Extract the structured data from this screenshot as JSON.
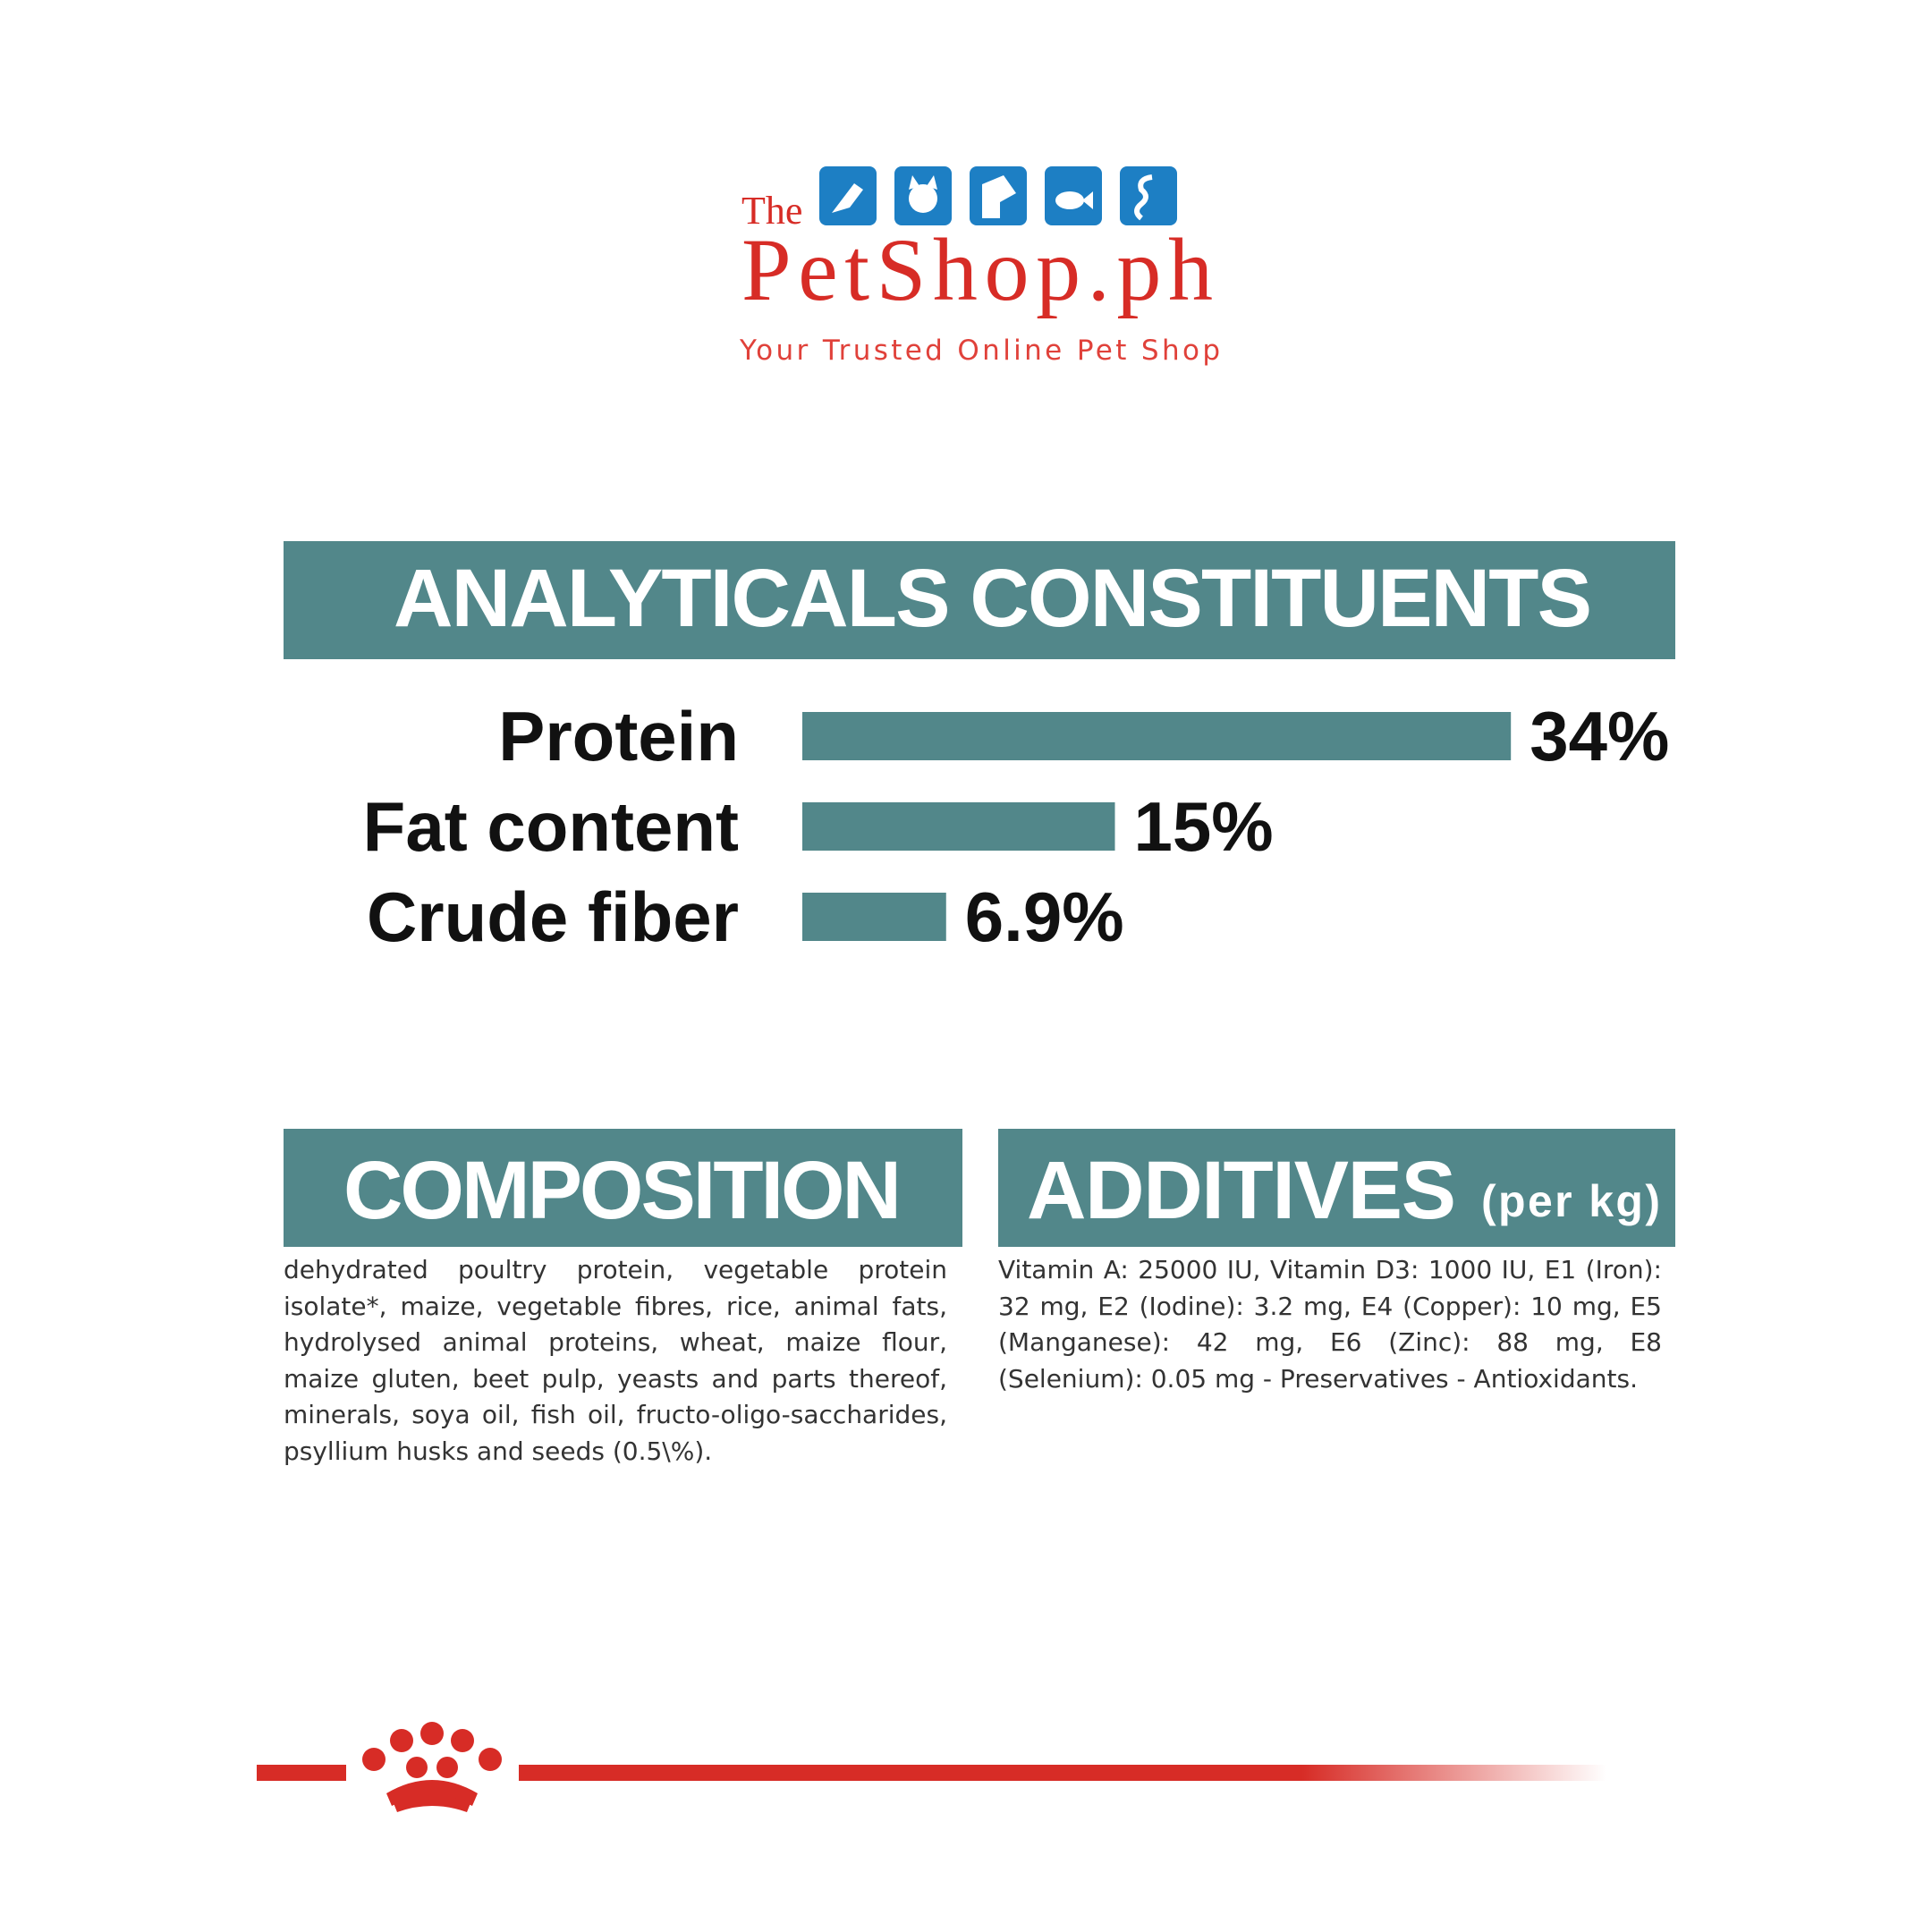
{
  "header": {
    "the": "The",
    "brand": "PetShop.ph",
    "tagline": "Your Trusted Online Pet Shop"
  },
  "chart_data": {
    "type": "bar",
    "orientation": "horizontal",
    "title": "ANALYTICALS CONSTITUENTS",
    "categories": [
      "Protein",
      "Fat content",
      "Crude fiber"
    ],
    "values": [
      34,
      15,
      6.9
    ],
    "value_labels": [
      "34%",
      "15%",
      "6.9%"
    ],
    "color": "#52878a"
  },
  "composition": {
    "title": "COMPOSITION",
    "text": "dehydrated poultry protein, vegetable protein isolate*, maize, vegetable fibres, rice, animal fats, hydrolysed animal proteins, wheat, maize flour, maize gluten, beet pulp, yeasts and parts thereof, minerals, soya oil, fish oil, fructo-oligo-saccharides, psyllium husks and seeds (0.5\\%)."
  },
  "additives": {
    "title": "ADDITIVES",
    "unit": "(per kg)",
    "text": "Vitamin A: 25000 IU, Vitamin D3: 1000 IU, E1 (Iron): 32 mg, E2 (Iodine): 3.2 mg, E4 (Copper): 10 mg, E5 (Manganese): 42 mg, E6 (Zinc): 88 mg, E8 (Selenium): 0.05 mg - Preservatives - Antioxidants."
  }
}
